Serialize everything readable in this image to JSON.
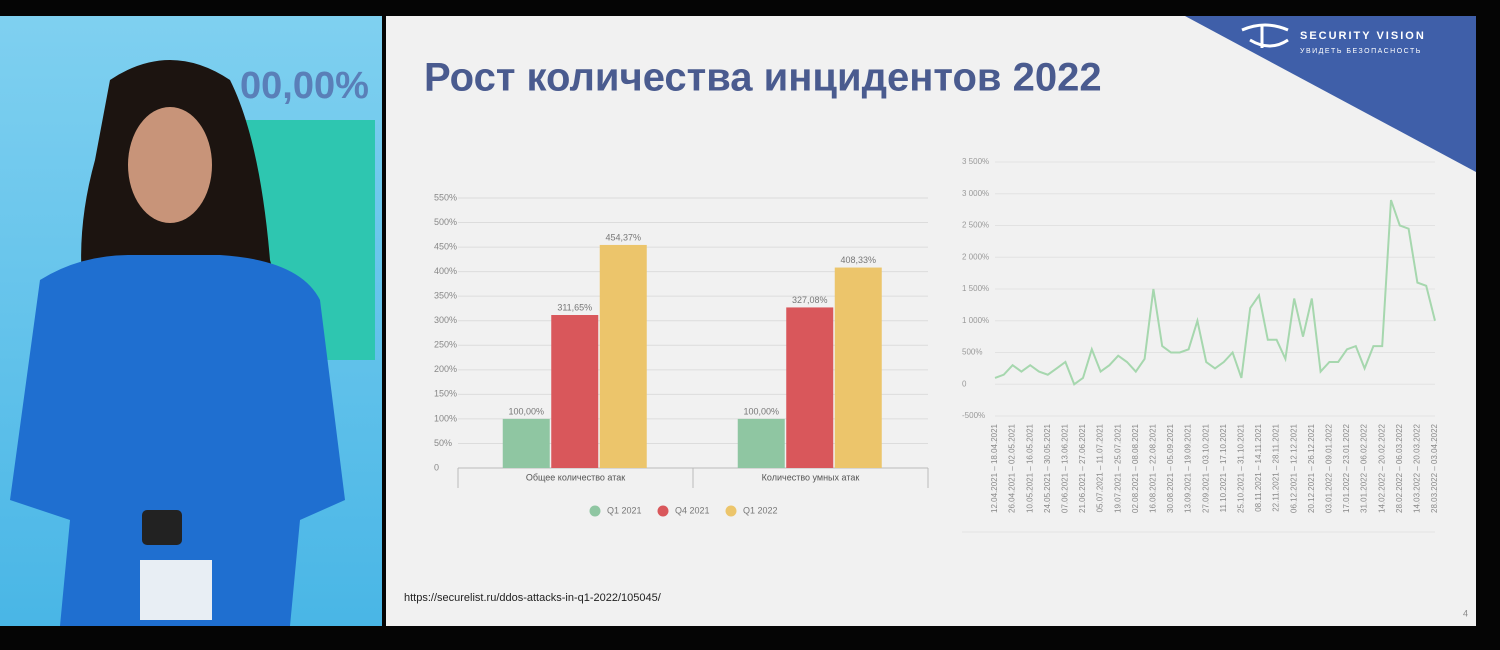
{
  "photo": {
    "screen_text": "00,00%"
  },
  "slide": {
    "title": "Рост количества инцидентов 2022",
    "brand": "SECURITY VISION",
    "tagline": "УВИДЕТЬ БЕЗОПАСНОСТЬ",
    "source": "https://securelist.ru/ddos-attacks-in-q1-2022/105045/",
    "page": "4"
  },
  "chart_data": [
    {
      "type": "bar",
      "categories": [
        "Общее количество атак",
        "Количество умных атак"
      ],
      "series": [
        {
          "name": "Q1 2021",
          "color": "#8fc6a2",
          "values": [
            100,
            100
          ],
          "value_labels": [
            "100,00%",
            "100,00%"
          ]
        },
        {
          "name": "Q4 2021",
          "color": "#d9575b",
          "values": [
            311.65,
            327.08
          ],
          "value_labels": [
            "311,65%",
            "327,08%"
          ]
        },
        {
          "name": "Q1 2022",
          "color": "#ecc56b",
          "values": [
            454.37,
            408.33
          ],
          "value_labels": [
            "454,37%",
            "408,33%"
          ]
        }
      ],
      "ylim": [
        0,
        550
      ],
      "yticks": [
        0,
        {
          "value": 50,
          "label": "50%"
        },
        {
          "value": 100,
          "label": "100%"
        },
        {
          "value": 150,
          "label": "150%"
        },
        {
          "value": 200,
          "label": "200%"
        },
        {
          "value": 250,
          "label": "250%"
        },
        {
          "value": 300,
          "label": "300%"
        },
        {
          "value": 350,
          "label": "350%"
        },
        {
          "value": 400,
          "label": "400%"
        },
        {
          "value": 450,
          "label": "450%"
        },
        {
          "value": 500,
          "label": "500%"
        },
        {
          "value": 550,
          "label": "550%"
        }
      ],
      "grid": true,
      "legend": "bottom"
    },
    {
      "type": "line",
      "categories": [
        "12.04.2021 – 18.04.2021",
        null,
        "26.04.2021 – 02.05.2021",
        null,
        "10.05.2021 – 16.05.2021",
        null,
        "24.05.2021 – 30.05.2021",
        null,
        "07.06.2021 – 13.06.2021",
        null,
        "21.06.2021 – 27.06.2021",
        null,
        "05.07.2021 – 11.07.2021",
        null,
        "19.07.2021 – 25.07.2021",
        null,
        "02.08.2021 – 08.08.2021",
        null,
        "16.08.2021 – 22.08.2021",
        null,
        "30.08.2021 – 05.09.2021",
        null,
        "13.09.2021 – 19.09.2021",
        null,
        "27.09.2021 – 03.10.2021",
        null,
        "11.10.2021 – 17.10.2021",
        null,
        "25.10.2021 – 31.10.2021",
        null,
        "08.11.2021 – 14.11.2021",
        null,
        "22.11.2021 – 28.11.2021",
        null,
        "06.12.2021 – 12.12.2021",
        null,
        "20.12.2021 – 26.12.2021",
        null,
        "03.01.2022 – 09.01.2022",
        null,
        "17.01.2022 – 23.01.2022",
        null,
        "31.01.2022 – 06.02.2022",
        null,
        "14.02.2022 – 20.02.2022",
        null,
        "28.02.2022 – 06.03.2022",
        null,
        "14.03.2022 – 20.03.2022",
        null,
        "28.03.2022 – 03.04.2022"
      ],
      "series": [
        {
          "color": "#a6d7ae",
          "values": [
            100,
            150,
            300,
            200,
            300,
            200,
            150,
            250,
            350,
            0,
            100,
            550,
            200,
            300,
            450,
            350,
            200,
            400,
            1500,
            600,
            500,
            500,
            550,
            1000,
            350,
            250,
            350,
            500,
            100,
            1200,
            1400,
            700,
            700,
            400,
            1350,
            750,
            1350,
            200,
            350,
            350,
            550,
            600,
            250,
            600,
            600,
            2900,
            2500,
            2450,
            1600,
            1550,
            1000
          ]
        }
      ],
      "ylim": [
        -500,
        3500
      ],
      "yticks": [
        {
          "value": -500,
          "label": "-500%"
        },
        0,
        {
          "value": 500,
          "label": "500%"
        },
        {
          "value": 1000,
          "label": "1 000%"
        },
        {
          "value": 1500,
          "label": "1 500%"
        },
        {
          "value": 2000,
          "label": "2 000%"
        },
        {
          "value": 2500,
          "label": "2 500%"
        },
        {
          "value": 3000,
          "label": "3 000%"
        },
        {
          "value": 3500,
          "label": "3 500%"
        }
      ],
      "grid": true
    }
  ]
}
